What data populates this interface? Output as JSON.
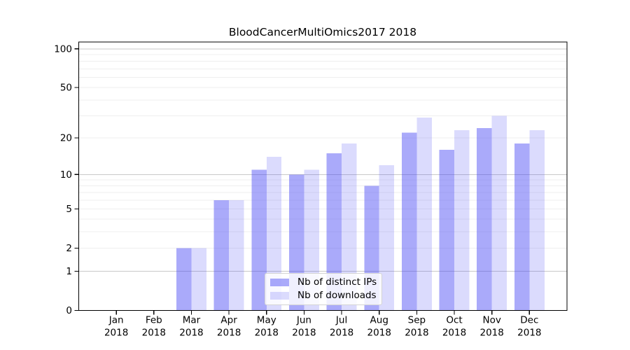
{
  "chart_data": {
    "type": "bar",
    "title": "BloodCancerMultiOmics2017 2018",
    "categories": [
      "Jan",
      "Feb",
      "Mar",
      "Apr",
      "May",
      "Jun",
      "Jul",
      "Aug",
      "Sep",
      "Oct",
      "Nov",
      "Dec"
    ],
    "x_year_label": "2018",
    "series": [
      {
        "name": "Nb of distinct IPs",
        "color": "rgba(62,62,244,0.44)",
        "color_hex_on_white": "#a9a9f8",
        "values": [
          0,
          0,
          2,
          6,
          11,
          10,
          15,
          8,
          22,
          16,
          24,
          18
        ]
      },
      {
        "name": "Nb of downloads",
        "color": "rgba(62,62,244,0.19)",
        "color_hex_on_white": "#d9d9fb",
        "values": [
          0,
          0,
          2,
          6,
          14,
          11,
          18,
          12,
          29,
          23,
          30,
          23
        ]
      }
    ],
    "y_axis": {
      "scale": "log1p",
      "tick_values": [
        0,
        1,
        2,
        5,
        10,
        20,
        50,
        100
      ],
      "minor_grid_values": [
        2,
        3,
        4,
        5,
        6,
        7,
        8,
        9,
        20,
        30,
        40,
        50,
        60,
        70,
        80,
        90
      ],
      "major_grid_values": [
        1,
        10,
        100
      ],
      "ylim": [
        0,
        113
      ]
    },
    "legend": {
      "position": "bottom-center"
    },
    "grid": true,
    "colors": {
      "minor_grid": "#efefef",
      "major_grid": "#c9c9c9",
      "axis": "#000000",
      "background": "#ffffff"
    }
  }
}
